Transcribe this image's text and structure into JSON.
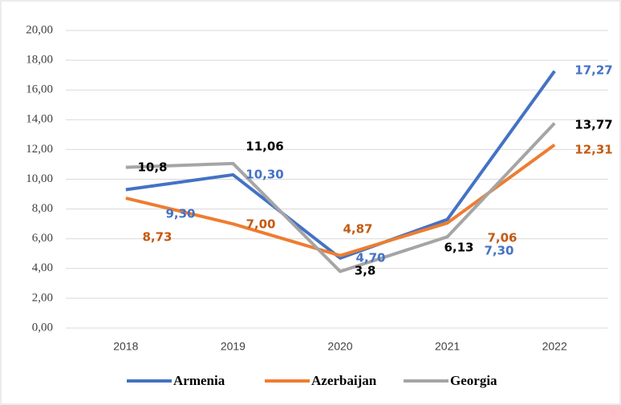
{
  "chart_data": {
    "type": "line",
    "categories": [
      "2018",
      "2019",
      "2020",
      "2021",
      "2022"
    ],
    "series": [
      {
        "name": "Armenia",
        "color": "#4472c4",
        "label_color": "#4472c4",
        "values": [
          9.3,
          10.3,
          4.7,
          7.3,
          17.27
        ],
        "value_labels": [
          "9,30",
          "10,30",
          "4,70",
          "7,30",
          "17,27"
        ]
      },
      {
        "name": "Azerbaijan",
        "color": "#ed7d31",
        "label_color": "#c55a11",
        "values": [
          8.73,
          7.0,
          4.87,
          7.06,
          12.31
        ],
        "value_labels": [
          "8,73",
          "7,00",
          "4,87",
          "7,06",
          "12,31"
        ]
      },
      {
        "name": "Georgia",
        "color": "#a5a5a5",
        "label_color": "#000000",
        "values": [
          10.8,
          11.06,
          3.8,
          6.13,
          13.77
        ],
        "value_labels": [
          "10,8",
          "11,06",
          "3,8",
          "6,13",
          "13,77"
        ]
      }
    ],
    "ylim": [
      0,
      20
    ],
    "yticks": [
      {
        "value": 0,
        "label": "0,00"
      },
      {
        "value": 2,
        "label": "2,00"
      },
      {
        "value": 4,
        "label": "4,00"
      },
      {
        "value": 6,
        "label": "6,00"
      },
      {
        "value": 8,
        "label": "8,00"
      },
      {
        "value": 10,
        "label": "10,00"
      },
      {
        "value": 12,
        "label": "12,00"
      },
      {
        "value": 14,
        "label": "14,00"
      },
      {
        "value": 16,
        "label": "16,00"
      },
      {
        "value": 18,
        "label": "18,00"
      },
      {
        "value": 20,
        "label": "20,00"
      }
    ],
    "grid": true,
    "legend": "bottom"
  }
}
